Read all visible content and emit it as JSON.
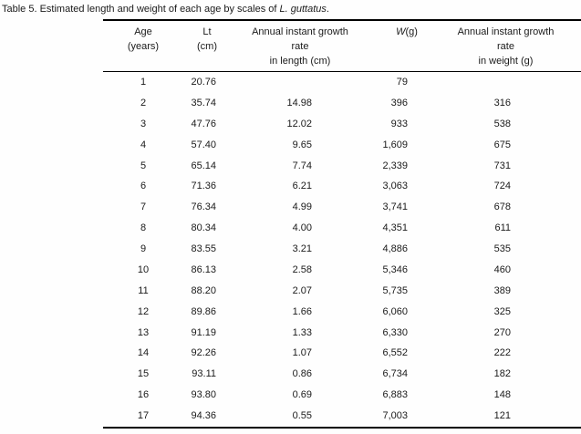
{
  "caption": {
    "prefix": "Table 5. Estimated length and weight of each age by scales of ",
    "species": "L. guttatus",
    "suffix": "."
  },
  "columns": {
    "age": {
      "line1": "Age",
      "line2": "(years)"
    },
    "lt": {
      "line1": "Lt",
      "line2": "(cm)"
    },
    "growth_length": {
      "line1": "Annual instant growth",
      "line2": "rate",
      "line3": "in length (cm)"
    },
    "weight": {
      "symbol": "W",
      "unit": "(g)"
    },
    "growth_weight": {
      "line1": "Annual instant growth",
      "line2": "rate",
      "line3": "in weight (g)"
    }
  },
  "table": {
    "rows": [
      {
        "age": "1",
        "lt": "20.76",
        "growth_length": "",
        "w": "79",
        "growth_weight": ""
      },
      {
        "age": "2",
        "lt": "35.74",
        "growth_length": "14.98",
        "w": "396",
        "growth_weight": "316"
      },
      {
        "age": "3",
        "lt": "47.76",
        "growth_length": "12.02",
        "w": "933",
        "growth_weight": "538"
      },
      {
        "age": "4",
        "lt": "57.40",
        "growth_length": "9.65",
        "w": "1,609",
        "growth_weight": "675"
      },
      {
        "age": "5",
        "lt": "65.14",
        "growth_length": "7.74",
        "w": "2,339",
        "growth_weight": "731"
      },
      {
        "age": "6",
        "lt": "71.36",
        "growth_length": "6.21",
        "w": "3,063",
        "growth_weight": "724"
      },
      {
        "age": "7",
        "lt": "76.34",
        "growth_length": "4.99",
        "w": "3,741",
        "growth_weight": "678"
      },
      {
        "age": "8",
        "lt": "80.34",
        "growth_length": "4.00",
        "w": "4,351",
        "growth_weight": "611"
      },
      {
        "age": "9",
        "lt": "83.55",
        "growth_length": "3.21",
        "w": "4,886",
        "growth_weight": "535"
      },
      {
        "age": "10",
        "lt": "86.13",
        "growth_length": "2.58",
        "w": "5,346",
        "growth_weight": "460"
      },
      {
        "age": "11",
        "lt": "88.20",
        "growth_length": "2.07",
        "w": "5,735",
        "growth_weight": "389"
      },
      {
        "age": "12",
        "lt": "89.86",
        "growth_length": "1.66",
        "w": "6,060",
        "growth_weight": "325"
      },
      {
        "age": "13",
        "lt": "91.19",
        "growth_length": "1.33",
        "w": "6,330",
        "growth_weight": "270"
      },
      {
        "age": "14",
        "lt": "92.26",
        "growth_length": "1.07",
        "w": "6,552",
        "growth_weight": "222"
      },
      {
        "age": "15",
        "lt": "93.11",
        "growth_length": "0.86",
        "w": "6,734",
        "growth_weight": "182"
      },
      {
        "age": "16",
        "lt": "93.80",
        "growth_length": "0.69",
        "w": "6,883",
        "growth_weight": "148"
      },
      {
        "age": "17",
        "lt": "94.36",
        "growth_length": "0.55",
        "w": "7,003",
        "growth_weight": "121"
      }
    ]
  },
  "colors": {
    "text": "#1a1a1a",
    "rule": "#000000",
    "background": "#fefefe"
  }
}
